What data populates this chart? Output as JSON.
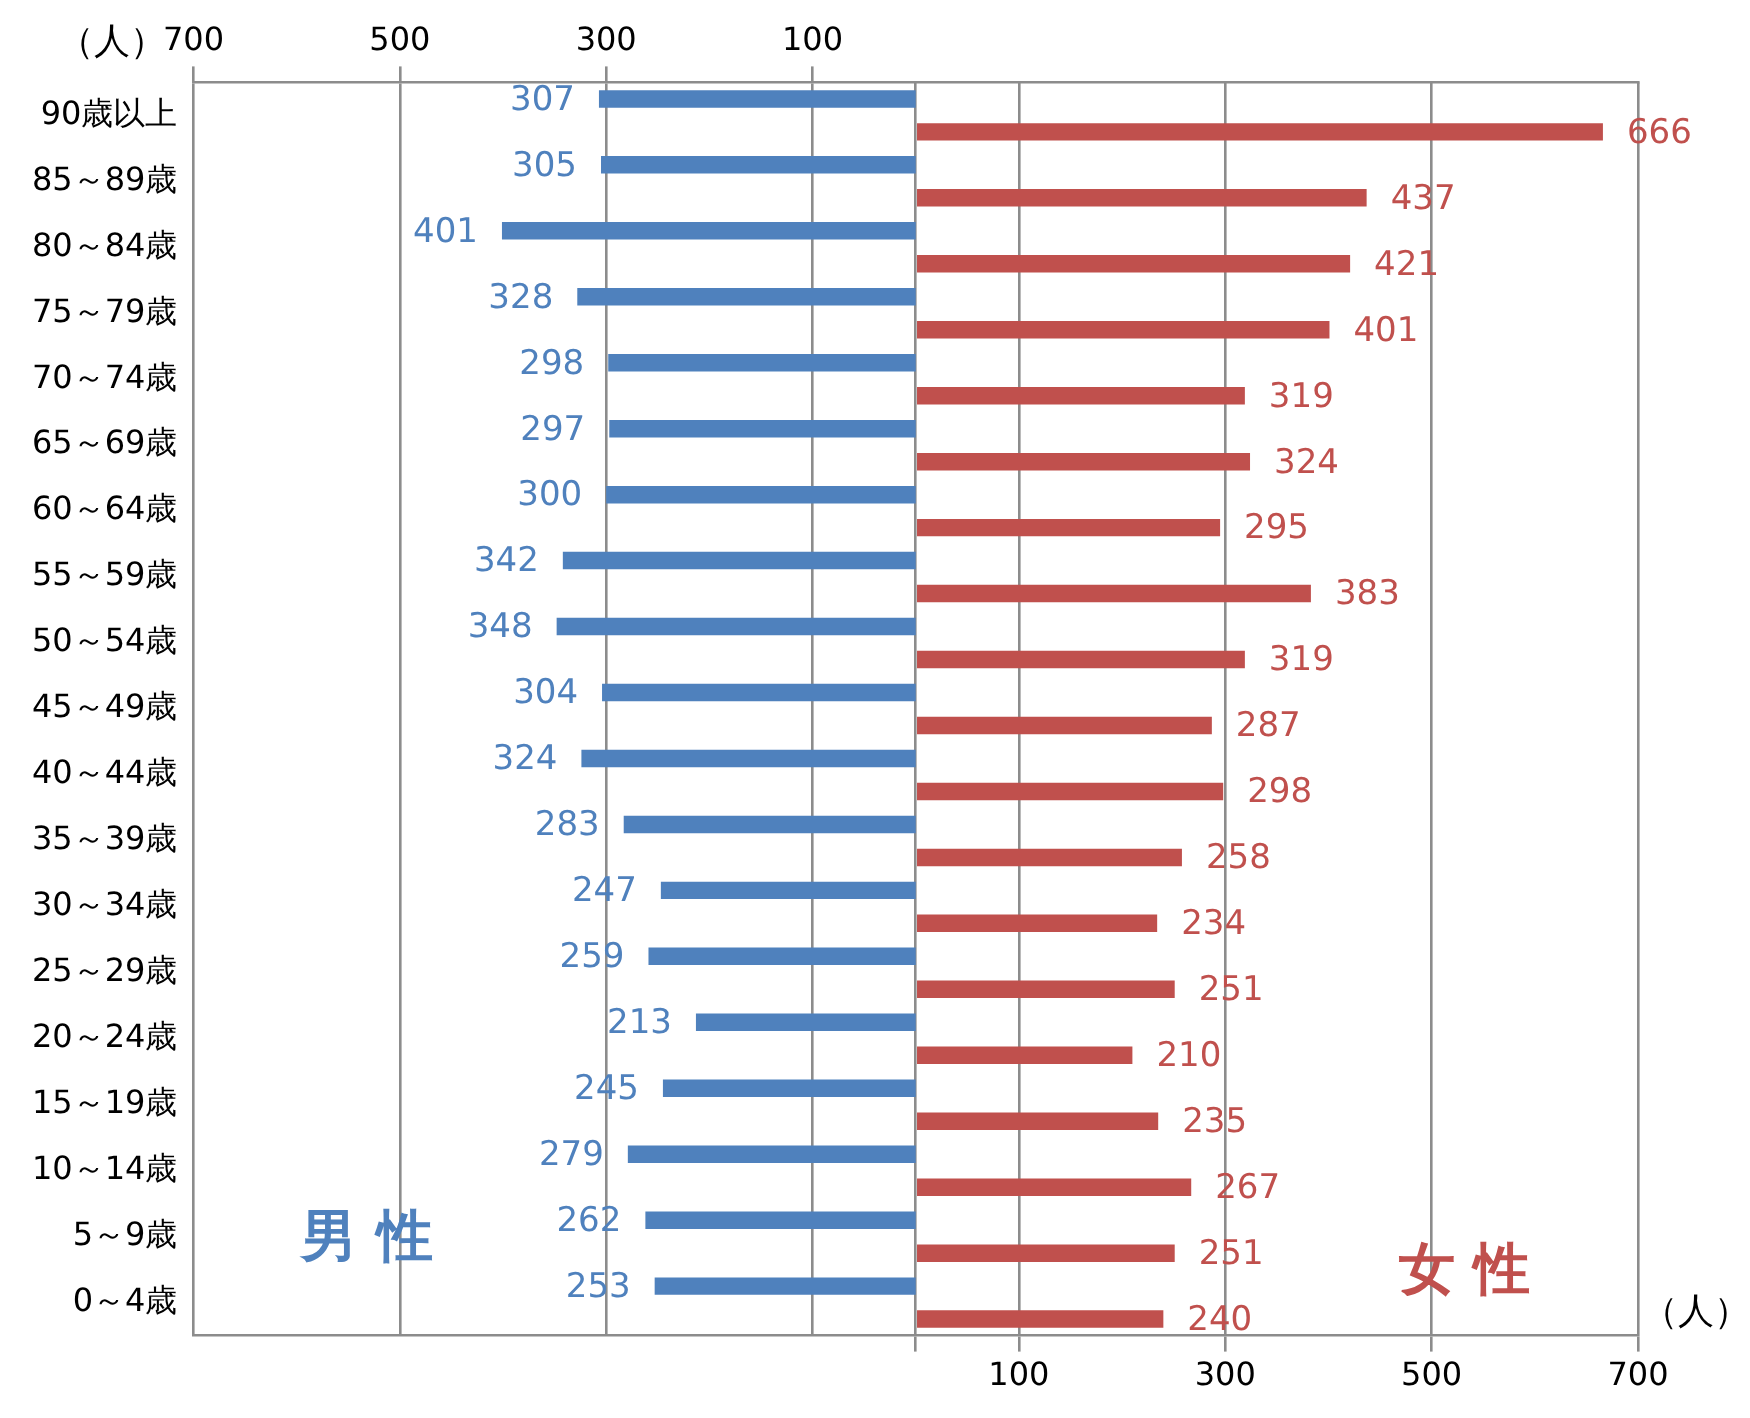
{
  "chart_data": {
    "type": "bar",
    "orientation": "horizontal",
    "categories": [
      "90歳以上",
      "85～89歳",
      "80～84歳",
      "75～79歳",
      "70～74歳",
      "65～69歳",
      "60～64歳",
      "55～59歳",
      "50～54歳",
      "45～49歳",
      "40～44歳",
      "35～39歳",
      "30～34歳",
      "25～29歳",
      "20～24歳",
      "15～19歳",
      "10～14歳",
      "5～9歳",
      "0～4歳"
    ],
    "series": [
      {
        "name": "男 性",
        "color": "#4f81bd",
        "axis": "x2",
        "values": [
          307,
          305,
          401,
          328,
          298,
          297,
          300,
          342,
          348,
          304,
          324,
          283,
          247,
          259,
          213,
          245,
          279,
          262,
          253
        ]
      },
      {
        "name": "女 性",
        "color": "#c0504d",
        "values": [
          666,
          437,
          421,
          401,
          319,
          324,
          295,
          383,
          319,
          287,
          298,
          258,
          234,
          251,
          210,
          235,
          267,
          251,
          240
        ]
      }
    ],
    "xlim": [
      -700,
      700
    ],
    "xticks": [
      {
        "value": 0,
        "label": null
      },
      100,
      300,
      500,
      700
    ],
    "x2lim": [
      700,
      -700
    ],
    "x2ticks": [
      700,
      500,
      300,
      100
    ],
    "xlabel": "（人）",
    "x2label": "（人）",
    "grid": "x",
    "legend": false,
    "data_labels": true
  }
}
